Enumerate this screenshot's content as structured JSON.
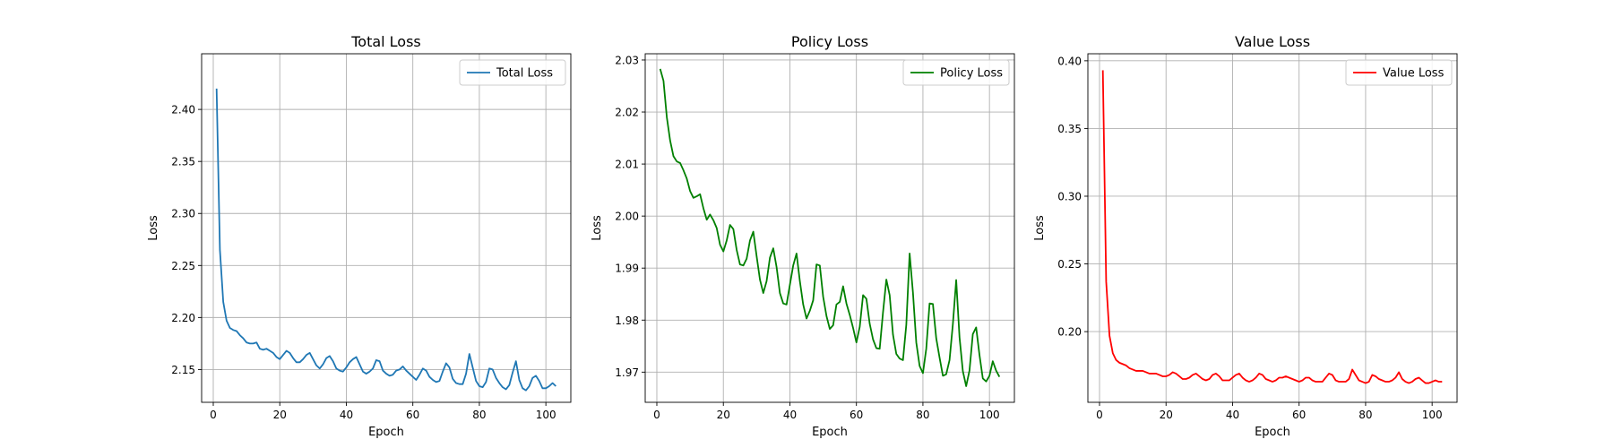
{
  "chart_data": [
    {
      "type": "line",
      "title": "Total Loss",
      "xlabel": "Epoch",
      "ylabel": "Loss",
      "xlim": [
        -3.5,
        107.5
      ],
      "ylim": [
        2.1185,
        2.4535
      ],
      "xticks": [
        0,
        20,
        40,
        60,
        80,
        100
      ],
      "yticks": [
        2.15,
        2.2,
        2.25,
        2.3,
        2.35,
        2.4
      ],
      "xtick_labels": [
        "0",
        "20",
        "40",
        "60",
        "80",
        "100"
      ],
      "ytick_labels": [
        "2.15",
        "2.20",
        "2.25",
        "2.30",
        "2.35",
        "2.40"
      ],
      "grid": true,
      "legend": "upper right",
      "series": [
        {
          "name": "Total Loss",
          "color": "#1f77b4",
          "x": [
            1,
            2,
            3,
            4,
            5,
            6,
            7,
            8,
            9,
            10,
            11,
            12,
            13,
            14,
            15,
            16,
            17,
            18,
            19,
            20,
            21,
            22,
            23,
            24,
            25,
            26,
            27,
            28,
            29,
            30,
            31,
            32,
            33,
            34,
            35,
            36,
            37,
            38,
            39,
            40,
            41,
            42,
            43,
            44,
            45,
            46,
            47,
            48,
            49,
            50,
            51,
            52,
            53,
            54,
            55,
            56,
            57,
            58,
            59,
            60,
            61,
            62,
            63,
            64,
            65,
            66,
            67,
            68,
            69,
            70,
            71,
            72,
            73,
            74,
            75,
            76,
            77,
            78,
            79,
            80,
            81,
            82,
            83,
            84,
            85,
            86,
            87,
            88,
            89,
            90,
            91,
            92,
            93,
            94,
            95,
            96,
            97,
            98,
            99,
            100,
            101,
            102,
            103
          ],
          "y": [
            2.42,
            2.265,
            2.215,
            2.197,
            2.19,
            2.188,
            2.187,
            2.183,
            2.18,
            2.176,
            2.175,
            2.175,
            2.176,
            2.17,
            2.169,
            2.17,
            2.168,
            2.166,
            2.162,
            2.16,
            2.164,
            2.168,
            2.166,
            2.161,
            2.157,
            2.157,
            2.16,
            2.164,
            2.166,
            2.16,
            2.154,
            2.151,
            2.155,
            2.161,
            2.163,
            2.158,
            2.151,
            2.149,
            2.148,
            2.152,
            2.157,
            2.16,
            2.162,
            2.155,
            2.148,
            2.146,
            2.148,
            2.151,
            2.159,
            2.158,
            2.149,
            2.146,
            2.144,
            2.145,
            2.149,
            2.15,
            2.153,
            2.149,
            2.146,
            2.143,
            2.14,
            2.145,
            2.151,
            2.149,
            2.143,
            2.14,
            2.138,
            2.139,
            2.148,
            2.156,
            2.152,
            2.141,
            2.137,
            2.136,
            2.136,
            2.146,
            2.165,
            2.152,
            2.139,
            2.134,
            2.133,
            2.138,
            2.151,
            2.15,
            2.142,
            2.137,
            2.133,
            2.131,
            2.135,
            2.147,
            2.158,
            2.14,
            2.132,
            2.13,
            2.134,
            2.142,
            2.144,
            2.139,
            2.132,
            2.132,
            2.134,
            2.137,
            2.134
          ]
        }
      ]
    },
    {
      "type": "line",
      "title": "Policy Loss",
      "xlabel": "Epoch",
      "ylabel": "Loss",
      "xlim": [
        -3.5,
        107.5
      ],
      "ylim": [
        1.9642,
        2.0312
      ],
      "xticks": [
        0,
        20,
        40,
        60,
        80,
        100
      ],
      "yticks": [
        1.97,
        1.98,
        1.99,
        2.0,
        2.01,
        2.02,
        2.03
      ],
      "xtick_labels": [
        "0",
        "20",
        "40",
        "60",
        "80",
        "100"
      ],
      "ytick_labels": [
        "1.97",
        "1.98",
        "1.99",
        "2.00",
        "2.01",
        "2.02",
        "2.03"
      ],
      "grid": true,
      "legend": "upper right",
      "series": [
        {
          "name": "Policy Loss",
          "color": "#008000",
          "x": [
            1,
            2,
            3,
            4,
            5,
            6,
            7,
            8,
            9,
            10,
            11,
            12,
            13,
            14,
            15,
            16,
            17,
            18,
            19,
            20,
            21,
            22,
            23,
            24,
            25,
            26,
            27,
            28,
            29,
            30,
            31,
            32,
            33,
            34,
            35,
            36,
            37,
            38,
            39,
            40,
            41,
            42,
            43,
            44,
            45,
            46,
            47,
            48,
            49,
            50,
            51,
            52,
            53,
            54,
            55,
            56,
            57,
            58,
            59,
            60,
            61,
            62,
            63,
            64,
            65,
            66,
            67,
            68,
            69,
            70,
            71,
            72,
            73,
            74,
            75,
            76,
            77,
            78,
            79,
            80,
            81,
            82,
            83,
            84,
            85,
            86,
            87,
            88,
            89,
            90,
            91,
            92,
            93,
            94,
            95,
            96,
            97,
            98,
            99,
            100,
            101,
            102,
            103
          ],
          "y": [
            2.0283,
            2.026,
            2.019,
            2.0145,
            2.0115,
            2.0105,
            2.0102,
            2.0088,
            2.0072,
            2.0048,
            2.0035,
            2.0038,
            2.0042,
            2.0015,
            1.9993,
            2.0003,
            1.9992,
            1.9977,
            1.9945,
            1.9932,
            1.9953,
            1.9983,
            1.9975,
            1.9935,
            1.9907,
            1.9905,
            1.9918,
            1.9953,
            1.997,
            1.9923,
            1.9878,
            1.9852,
            1.9875,
            1.992,
            1.9938,
            1.9902,
            1.9852,
            1.9832,
            1.983,
            1.9868,
            1.9905,
            1.9928,
            1.9875,
            1.983,
            1.9803,
            1.9818,
            1.9838,
            1.9907,
            1.9905,
            1.9845,
            1.9808,
            1.9783,
            1.979,
            1.983,
            1.9835,
            1.9865,
            1.9832,
            1.981,
            1.9785,
            1.9757,
            1.9787,
            1.9848,
            1.9841,
            1.9793,
            1.9763,
            1.9746,
            1.9745,
            1.9815,
            1.9878,
            1.9848,
            1.9772,
            1.9735,
            1.9726,
            1.9723,
            1.9791,
            1.9928,
            1.9853,
            1.9757,
            1.9712,
            1.9698,
            1.9745,
            1.9832,
            1.9831,
            1.9765,
            1.9728,
            1.9693,
            1.9696,
            1.9723,
            1.9792,
            1.9877,
            1.9767,
            1.9702,
            1.9673,
            1.9703,
            1.9773,
            1.9786,
            1.9733,
            1.9688,
            1.9682,
            1.9693,
            1.9721,
            1.9703,
            1.9691
          ]
        }
      ]
    },
    {
      "type": "line",
      "title": "Value Loss",
      "xlabel": "Epoch",
      "ylabel": "Loss",
      "xlim": [
        -3.5,
        107.5
      ],
      "ylim": [
        0.1478,
        0.4052
      ],
      "xticks": [
        0,
        20,
        40,
        60,
        80,
        100
      ],
      "yticks": [
        0.2,
        0.25,
        0.3,
        0.35,
        0.4
      ],
      "xtick_labels": [
        "0",
        "20",
        "40",
        "60",
        "80",
        "100"
      ],
      "ytick_labels": [
        "0.20",
        "0.25",
        "0.30",
        "0.35",
        "0.40"
      ],
      "grid": true,
      "legend": "upper right",
      "series": [
        {
          "name": "Value Loss",
          "color": "#ff0000",
          "x": [
            1,
            2,
            3,
            4,
            5,
            6,
            7,
            8,
            9,
            10,
            11,
            12,
            13,
            14,
            15,
            16,
            17,
            18,
            19,
            20,
            21,
            22,
            23,
            24,
            25,
            26,
            27,
            28,
            29,
            30,
            31,
            32,
            33,
            34,
            35,
            36,
            37,
            38,
            39,
            40,
            41,
            42,
            43,
            44,
            45,
            46,
            47,
            48,
            49,
            50,
            51,
            52,
            53,
            54,
            55,
            56,
            57,
            58,
            59,
            60,
            61,
            62,
            63,
            64,
            65,
            66,
            67,
            68,
            69,
            70,
            71,
            72,
            73,
            74,
            75,
            76,
            77,
            78,
            79,
            80,
            81,
            82,
            83,
            84,
            85,
            86,
            87,
            88,
            89,
            90,
            91,
            92,
            93,
            94,
            95,
            96,
            97,
            98,
            99,
            100,
            101,
            102,
            103
          ],
          "y": [
            0.393,
            0.237,
            0.197,
            0.184,
            0.179,
            0.177,
            0.176,
            0.175,
            0.173,
            0.172,
            0.171,
            0.171,
            0.171,
            0.17,
            0.169,
            0.169,
            0.169,
            0.168,
            0.167,
            0.167,
            0.168,
            0.17,
            0.169,
            0.167,
            0.165,
            0.165,
            0.166,
            0.168,
            0.169,
            0.167,
            0.165,
            0.164,
            0.165,
            0.168,
            0.169,
            0.167,
            0.164,
            0.164,
            0.164,
            0.166,
            0.168,
            0.169,
            0.166,
            0.164,
            0.163,
            0.164,
            0.166,
            0.169,
            0.168,
            0.165,
            0.164,
            0.163,
            0.164,
            0.166,
            0.166,
            0.167,
            0.166,
            0.165,
            0.164,
            0.163,
            0.164,
            0.166,
            0.166,
            0.164,
            0.163,
            0.163,
            0.163,
            0.166,
            0.169,
            0.168,
            0.164,
            0.163,
            0.163,
            0.163,
            0.165,
            0.172,
            0.168,
            0.164,
            0.163,
            0.162,
            0.163,
            0.168,
            0.167,
            0.165,
            0.164,
            0.163,
            0.163,
            0.164,
            0.166,
            0.17,
            0.165,
            0.163,
            0.162,
            0.163,
            0.165,
            0.166,
            0.164,
            0.162,
            0.162,
            0.163,
            0.164,
            0.163,
            0.163
          ]
        }
      ]
    }
  ]
}
